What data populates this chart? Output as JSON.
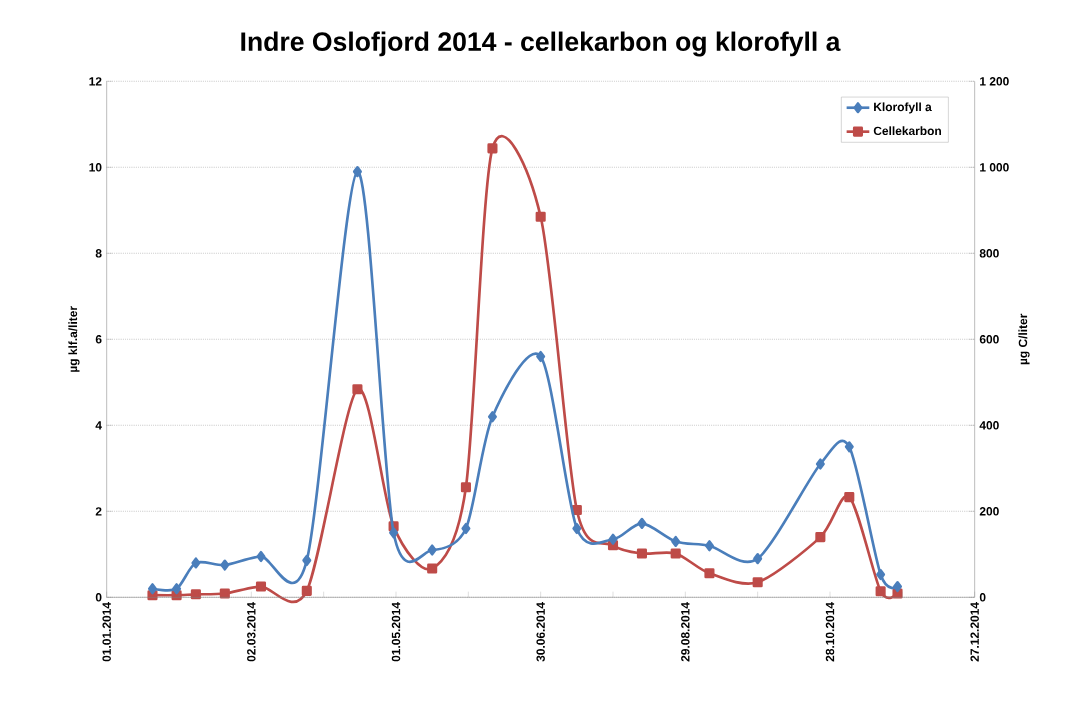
{
  "chart_data": {
    "type": "line",
    "title": "Indre Oslofjord 2014 - cellekarbon og klorofyll a",
    "ylabel": "µg klf.a/liter",
    "y2label": "µg C/liter",
    "x": [
      "2014-01-20",
      "2014-01-30",
      "2014-02-07",
      "2014-02-19",
      "2014-03-06",
      "2014-03-25",
      "2014-04-15",
      "2014-04-30",
      "2014-05-16",
      "2014-05-30",
      "2014-06-10",
      "2014-06-30",
      "2014-07-15",
      "2014-07-30",
      "2014-08-11",
      "2014-08-25",
      "2014-09-08",
      "2014-09-28",
      "2014-10-24",
      "2014-11-05",
      "2014-11-18",
      "2014-11-25"
    ],
    "series": [
      {
        "name": "Klorofyll a",
        "color": "#4a7ebb",
        "marker": "diamond",
        "values": [
          0.2,
          0.2,
          0.8,
          0.75,
          0.95,
          0.86,
          9.9,
          1.5,
          1.1,
          1.6,
          4.2,
          5.6,
          1.6,
          1.35,
          1.72,
          1.3,
          1.2,
          0.9,
          3.1,
          3.5,
          0.53,
          0.25
        ]
      },
      {
        "name": "Cellekarbon",
        "color": "#be4b48",
        "marker": "square",
        "axis": "y2",
        "values": [
          5,
          5,
          7,
          9,
          25,
          15,
          484,
          165,
          67,
          256,
          1044,
          885,
          203,
          121,
          102,
          102,
          56,
          35,
          140,
          233,
          14,
          9
        ]
      }
    ],
    "xlim": [
      "2014-01-01",
      "2014-12-27"
    ],
    "xticks": [
      {
        "value": "2014-01-01",
        "label": "01.01.2014"
      },
      {
        "value": "2014-01-31",
        "label": null
      },
      {
        "value": "2014-03-02",
        "label": "02.03.2014"
      },
      {
        "value": "2014-04-01",
        "label": null
      },
      {
        "value": "2014-05-01",
        "label": "01.05.2014"
      },
      {
        "value": "2014-05-31",
        "label": null
      },
      {
        "value": "2014-06-30",
        "label": "30.06.2014"
      },
      {
        "value": "2014-07-30",
        "label": null
      },
      {
        "value": "2014-08-29",
        "label": "29.08.2014"
      },
      {
        "value": "2014-09-28",
        "label": null
      },
      {
        "value": "2014-10-28",
        "label": "28.10.2014"
      },
      {
        "value": "2014-11-27",
        "label": null
      },
      {
        "value": "2014-12-27",
        "label": "27.12.2014"
      }
    ],
    "ylim": [
      0,
      12
    ],
    "yticks": [
      0,
      2,
      4,
      6,
      8,
      10,
      12
    ],
    "y2lim": [
      0,
      1200
    ],
    "y2ticks": [
      0,
      200,
      400,
      600,
      800,
      {
        "value": 1000,
        "label": "1 000"
      },
      {
        "value": 1200,
        "label": "1 200"
      }
    ],
    "grid": "y",
    "legend": "top right",
    "line_style": "solid"
  }
}
